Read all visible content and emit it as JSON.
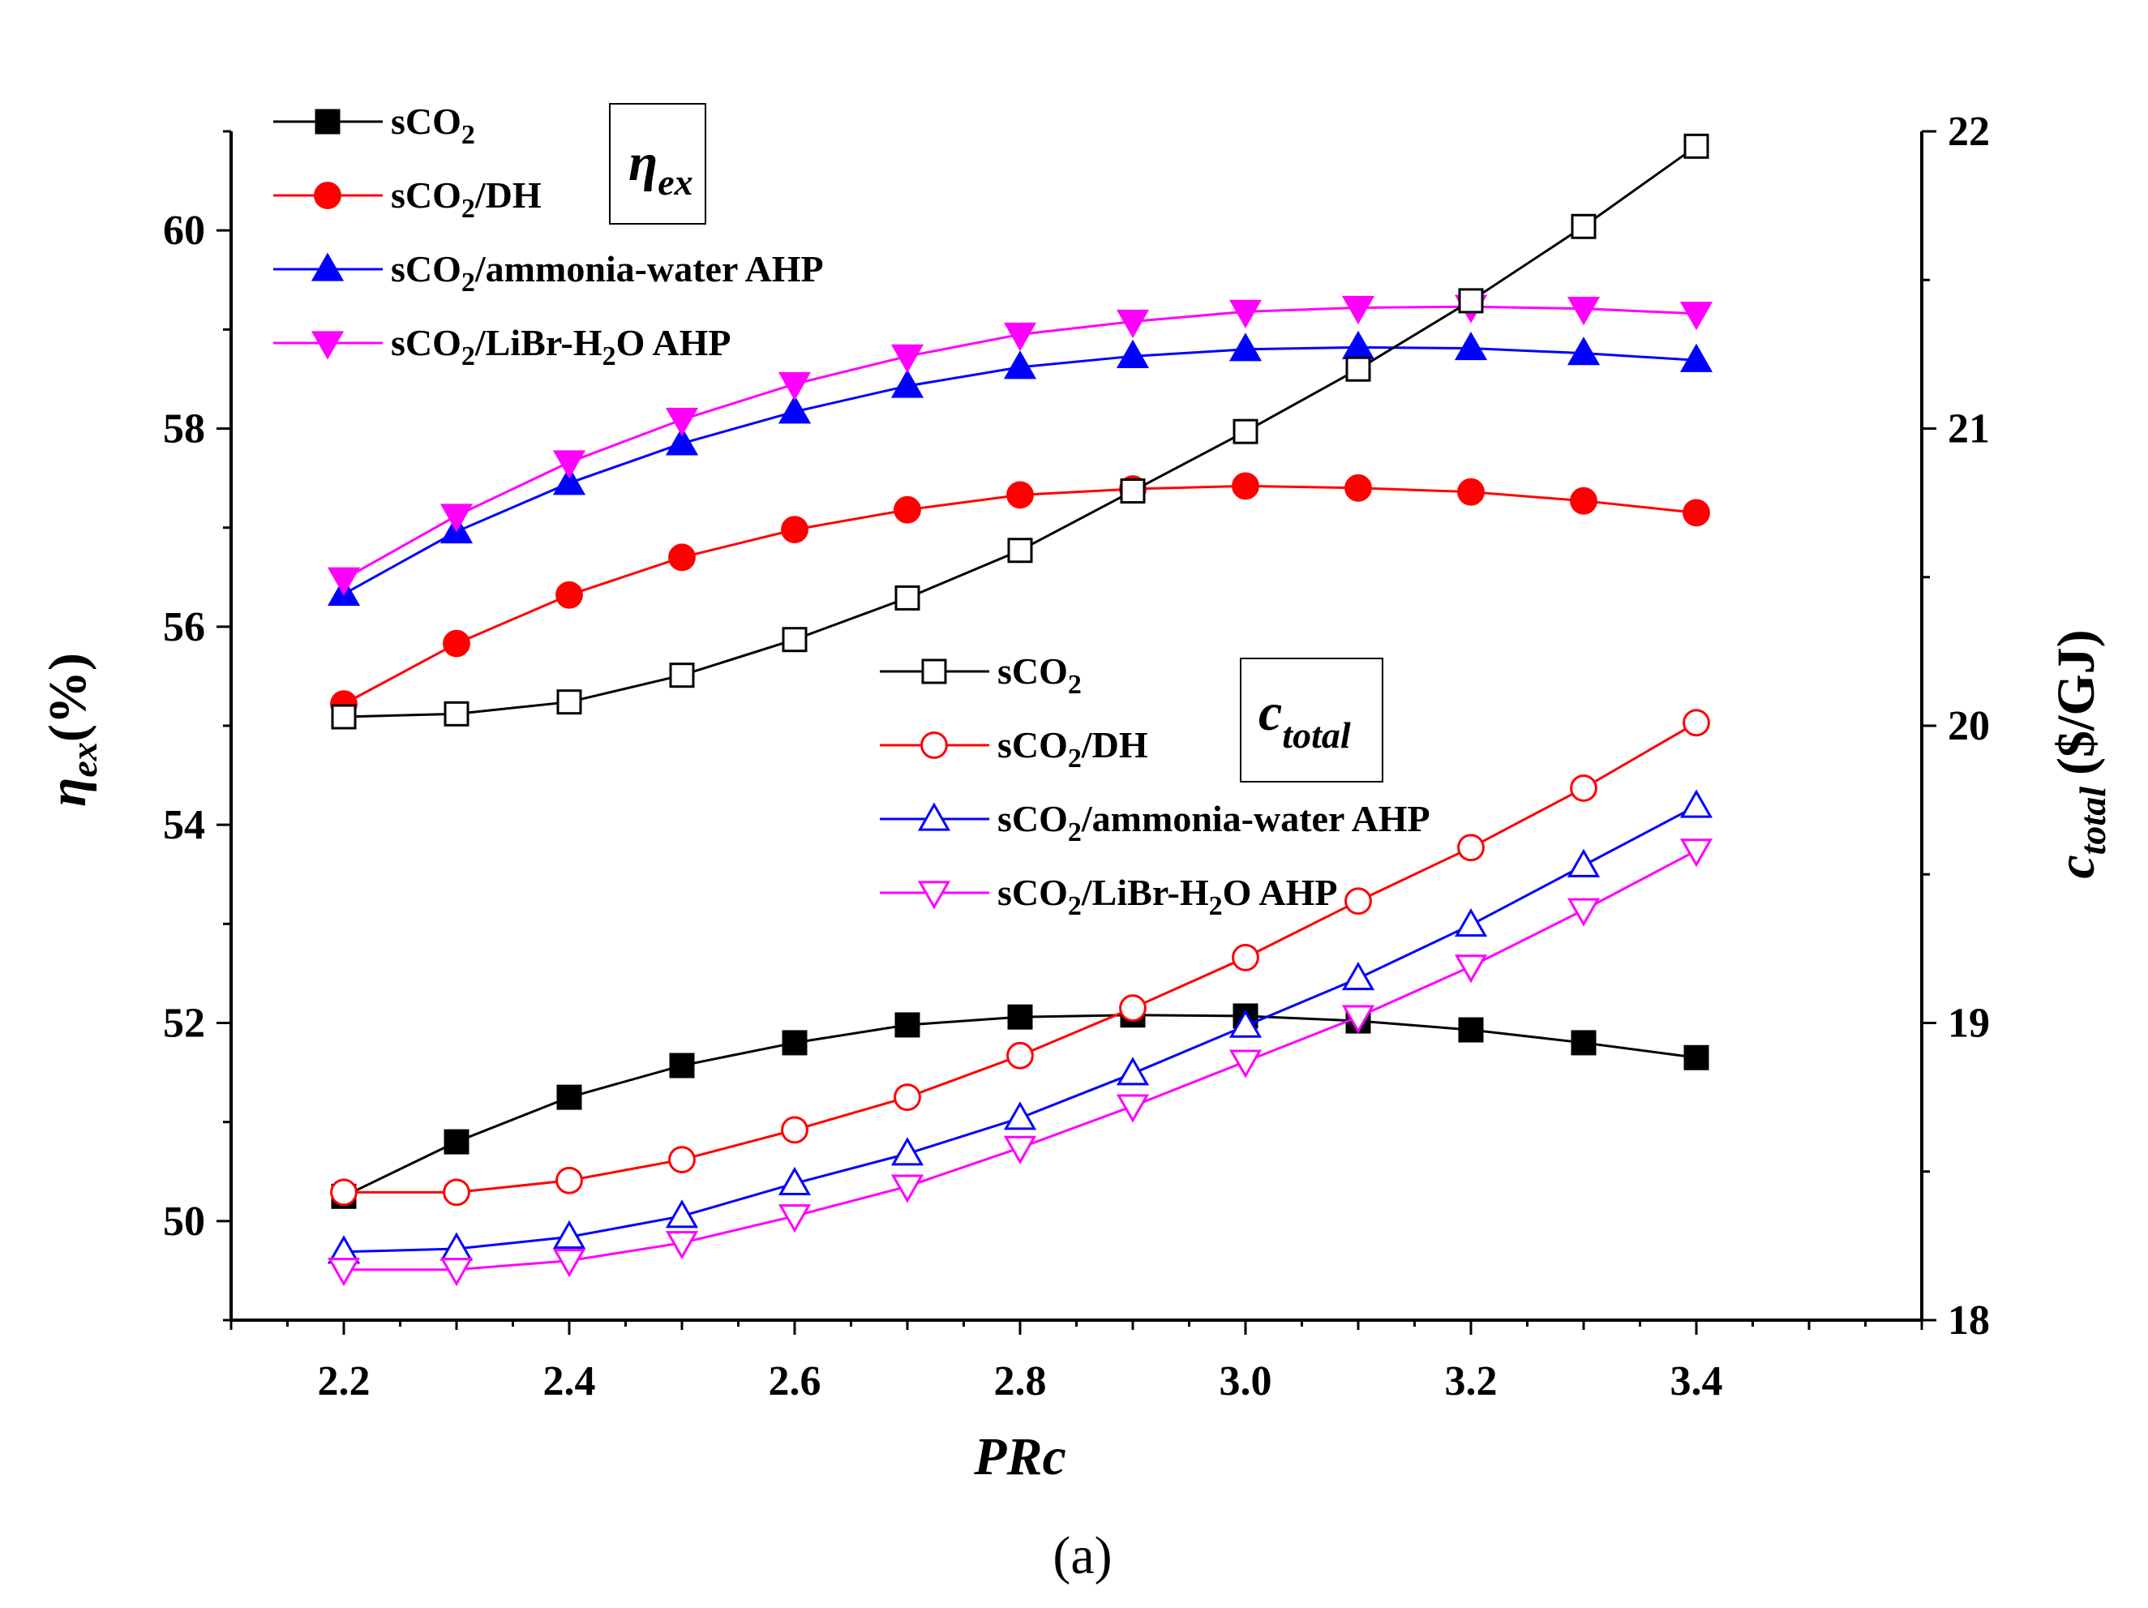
{
  "chart_data": {
    "type": "line",
    "caption": "(a)",
    "xlabel": "PRc",
    "x": [
      2.2,
      2.3,
      2.4,
      2.5,
      2.6,
      2.7,
      2.8,
      2.9,
      3.0,
      3.1,
      3.2,
      3.3,
      3.4
    ],
    "xticks": [
      "2.2",
      "2.4",
      "2.6",
      "2.8",
      "3.0",
      "3.2",
      "3.4"
    ],
    "xlim": [
      2.1,
      3.6
    ],
    "left_axis": {
      "label_symbol": "η",
      "label_sub": "ex",
      "label_unit": "(%)",
      "ylim": [
        49,
        61
      ],
      "ticks": [
        "50",
        "52",
        "54",
        "56",
        "58",
        "60"
      ],
      "box_title_symbol": "η",
      "box_title_sub": "ex"
    },
    "right_axis": {
      "label_symbol": "c",
      "label_sub": "total",
      "label_unit": "($/GJ)",
      "ylim": [
        18,
        22
      ],
      "ticks": [
        "18",
        "19",
        "20",
        "21",
        "22"
      ],
      "box_title_symbol": "c",
      "box_title_sub": "total"
    },
    "series": [
      {
        "name": "sCO2",
        "legend_main": "sCO",
        "legend_sub": "2",
        "legend_rest": "",
        "axis": "left",
        "color": "#000000",
        "marker": "square",
        "filled": true,
        "values": [
          50.25,
          50.8,
          51.25,
          51.57,
          51.8,
          51.98,
          52.06,
          52.08,
          52.07,
          52.02,
          51.93,
          51.8,
          51.65
        ]
      },
      {
        "name": "sCO2/DH",
        "legend_main": "sCO",
        "legend_sub": "2",
        "legend_rest": "/DH",
        "axis": "left",
        "color": "#ff0000",
        "marker": "circle",
        "filled": true,
        "values": [
          55.22,
          55.83,
          56.32,
          56.7,
          56.98,
          57.18,
          57.33,
          57.39,
          57.42,
          57.4,
          57.36,
          57.27,
          57.15
        ]
      },
      {
        "name": "sCO2/ammonia-water AHP",
        "legend_main": "sCO",
        "legend_sub": "2",
        "legend_rest": "/ammonia-water AHP",
        "axis": "left",
        "color": "#0000ff",
        "marker": "triangle-up",
        "filled": true,
        "values": [
          56.33,
          56.96,
          57.45,
          57.85,
          58.17,
          58.43,
          58.62,
          58.73,
          58.8,
          58.82,
          58.81,
          58.76,
          58.69
        ]
      },
      {
        "name": "sCO2/LiBr-H2O AHP",
        "legend_main": "sCO",
        "legend_sub": "2",
        "legend_rest": "/LiBr-H",
        "legend_sub2": "2",
        "legend_rest2": "O AHP",
        "axis": "left",
        "color": "#ff00ff",
        "marker": "triangle-down",
        "filled": true,
        "values": [
          56.48,
          57.12,
          57.66,
          58.09,
          58.45,
          58.73,
          58.95,
          59.08,
          59.18,
          59.22,
          59.23,
          59.21,
          59.16
        ]
      },
      {
        "name": "sCO2",
        "legend_main": "sCO",
        "legend_sub": "2",
        "legend_rest": "",
        "axis": "right",
        "color": "#000000",
        "marker": "square",
        "filled": false,
        "values": [
          20.03,
          20.04,
          20.08,
          20.17,
          20.29,
          20.43,
          20.59,
          20.79,
          20.99,
          21.2,
          21.43,
          21.68,
          21.95
        ]
      },
      {
        "name": "sCO2/DH",
        "legend_main": "sCO",
        "legend_sub": "2",
        "legend_rest": "/DH",
        "axis": "right",
        "color": "#ff0000",
        "marker": "circle",
        "filled": false,
        "values": [
          18.43,
          18.43,
          18.47,
          18.54,
          18.64,
          18.75,
          18.89,
          19.05,
          19.22,
          19.41,
          19.59,
          19.79,
          20.01
        ]
      },
      {
        "name": "sCO2/ammonia-water AHP",
        "legend_main": "sCO",
        "legend_sub": "2",
        "legend_rest": "/ammonia-water AHP",
        "axis": "right",
        "color": "#0000ff",
        "marker": "triangle-up",
        "filled": false,
        "values": [
          18.23,
          18.24,
          18.28,
          18.35,
          18.46,
          18.56,
          18.68,
          18.83,
          18.99,
          19.15,
          19.33,
          19.53,
          19.73
        ]
      },
      {
        "name": "sCO2/LiBr-H2O AHP",
        "legend_main": "sCO",
        "legend_sub": "2",
        "legend_rest": "/LiBr-H",
        "legend_sub2": "2",
        "legend_rest2": "O AHP",
        "axis": "right",
        "color": "#ff00ff",
        "marker": "triangle-down",
        "filled": false,
        "values": [
          18.17,
          18.17,
          18.2,
          18.26,
          18.35,
          18.45,
          18.58,
          18.72,
          18.87,
          19.02,
          19.19,
          19.38,
          19.58
        ]
      }
    ]
  }
}
